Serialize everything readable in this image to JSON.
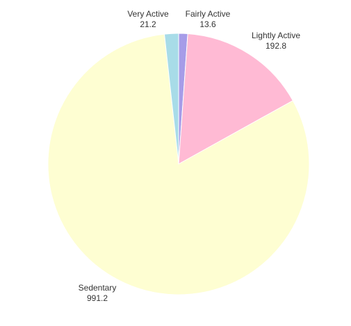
{
  "chart_data": {
    "type": "pie",
    "title": "",
    "start_angle_deg": 0,
    "direction": "clockwise",
    "legend": "none",
    "slices": [
      {
        "label": "Fairly Active",
        "value": 13.6,
        "display_value": "13.6",
        "color": "#a69ce8"
      },
      {
        "label": "Lightly Active",
        "value": 192.8,
        "display_value": "192.8",
        "color": "#ffbad4"
      },
      {
        "label": "Sedentary",
        "value": 991.2,
        "display_value": "991.2",
        "color": "#fefed2"
      },
      {
        "label": "Very Active",
        "value": 21.2,
        "display_value": "21.2",
        "color": "#a8dce8"
      }
    ]
  }
}
